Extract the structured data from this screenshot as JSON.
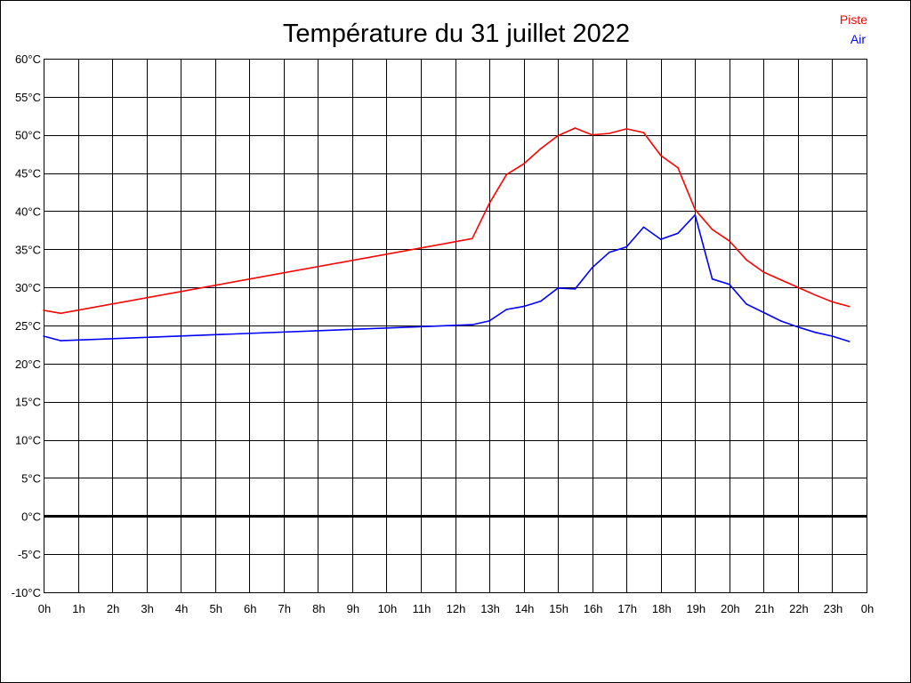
{
  "chart_data": {
    "type": "line",
    "title": "Température du 31 juillet 2022",
    "xlabel": "",
    "ylabel": "",
    "xlim": [
      0,
      24
    ],
    "ylim": [
      -10,
      60
    ],
    "grid": true,
    "legend_position": "top-right",
    "x_ticks": [
      "0h",
      "1h",
      "2h",
      "3h",
      "4h",
      "5h",
      "6h",
      "7h",
      "8h",
      "9h",
      "10h",
      "11h",
      "12h",
      "13h",
      "14h",
      "15h",
      "16h",
      "17h",
      "18h",
      "19h",
      "20h",
      "21h",
      "22h",
      "23h",
      "0h"
    ],
    "y_ticks": [
      "60°C",
      "55°C",
      "50°C",
      "45°C",
      "40°C",
      "35°C",
      "30°C",
      "25°C",
      "20°C",
      "15°C",
      "10°C",
      "5°C",
      "0°C",
      "-5°C",
      "-10°C"
    ],
    "y_tick_values": [
      60,
      55,
      50,
      45,
      40,
      35,
      30,
      25,
      20,
      15,
      10,
      5,
      0,
      -5,
      -10
    ],
    "series": [
      {
        "name": "Piste",
        "color": "#ff0000",
        "x": [
          0,
          0.5,
          12.5,
          13,
          13.5,
          14,
          14.5,
          15,
          15.5,
          16,
          16.5,
          17,
          17.5,
          18,
          18.5,
          19,
          19.5,
          20,
          20.5,
          21,
          21.5,
          22,
          22.5,
          23,
          23.5
        ],
        "y": [
          27.0,
          26.6,
          36.4,
          41.0,
          44.8,
          46.2,
          48.2,
          49.9,
          50.9,
          50.0,
          50.2,
          50.8,
          50.3,
          47.3,
          45.7,
          40.2,
          37.6,
          36.1,
          33.6,
          32.0,
          31.0,
          30.0,
          29.0,
          28.1,
          27.5
        ]
      },
      {
        "name": "Air",
        "color": "#0000ff",
        "x": [
          0,
          0.5,
          12.5,
          13,
          13.5,
          14,
          14.5,
          15,
          15.5,
          16,
          16.5,
          17,
          17.5,
          18,
          18.5,
          19,
          19.5,
          20,
          20.5,
          21,
          21.5,
          22,
          22.5,
          23,
          23.5
        ],
        "y": [
          23.6,
          23.0,
          25.1,
          25.6,
          27.1,
          27.5,
          28.2,
          29.9,
          29.8,
          32.6,
          34.6,
          35.3,
          37.9,
          36.3,
          37.1,
          39.5,
          31.1,
          30.4,
          27.8,
          26.7,
          25.6,
          24.8,
          24.1,
          23.6,
          22.9
        ]
      }
    ]
  }
}
